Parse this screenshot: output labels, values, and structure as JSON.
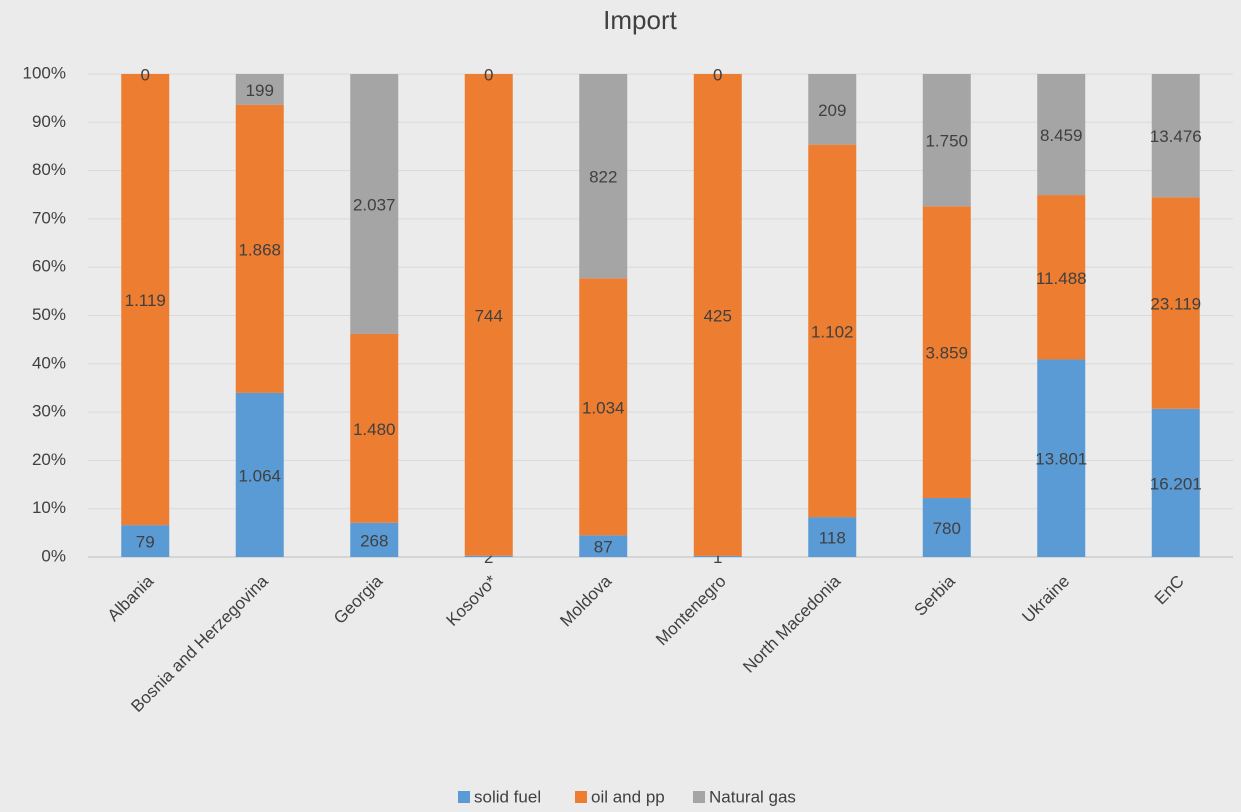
{
  "chart_data": {
    "type": "bar",
    "stacking": "percent",
    "title": "Import",
    "categories": [
      "Albania",
      "Bosnia and Herzegovina",
      "Georgia",
      "Kosovo*",
      "Moldova",
      "Montenegro",
      "North Macedonia",
      "Serbia",
      "Ukraine",
      "EnC"
    ],
    "series": [
      {
        "name": "solid fuel",
        "color": "#5b9bd5",
        "values": [
          79,
          1064,
          268,
          2,
          87,
          1,
          118,
          780,
          13801,
          16201
        ],
        "value_labels": [
          "79",
          "1.064",
          "268",
          "2",
          "87",
          "1",
          "118",
          "780",
          "13.801",
          "16.201"
        ]
      },
      {
        "name": "oil and pp",
        "color": "#ed7d31",
        "values": [
          1119,
          1868,
          1480,
          744,
          1034,
          425,
          1102,
          3859,
          11488,
          23119
        ],
        "value_labels": [
          "1.119",
          "1.868",
          "1.480",
          "744",
          "1.034",
          "425",
          "1.102",
          "3.859",
          "11.488",
          "23.119"
        ]
      },
      {
        "name": "Natural gas",
        "color": "#a5a5a5",
        "values": [
          0,
          199,
          2037,
          0,
          822,
          0,
          209,
          1750,
          8459,
          13476
        ],
        "value_labels": [
          "0",
          "199",
          "2.037",
          "0",
          "822",
          "0",
          "209",
          "1.750",
          "8.459",
          "13.476"
        ]
      }
    ],
    "ylim": [
      0,
      100
    ],
    "yticks": [
      {
        "value": 0,
        "label": "0%"
      },
      {
        "value": 10,
        "label": "10%"
      },
      {
        "value": 20,
        "label": "20%"
      },
      {
        "value": 30,
        "label": "30%"
      },
      {
        "value": 40,
        "label": "40%"
      },
      {
        "value": 50,
        "label": "50%"
      },
      {
        "value": 60,
        "label": "60%"
      },
      {
        "value": 70,
        "label": "70%"
      },
      {
        "value": 80,
        "label": "80%"
      },
      {
        "value": 90,
        "label": "90%"
      },
      {
        "value": 100,
        "label": "100%"
      }
    ],
    "grid": true,
    "legend": "bottom"
  }
}
